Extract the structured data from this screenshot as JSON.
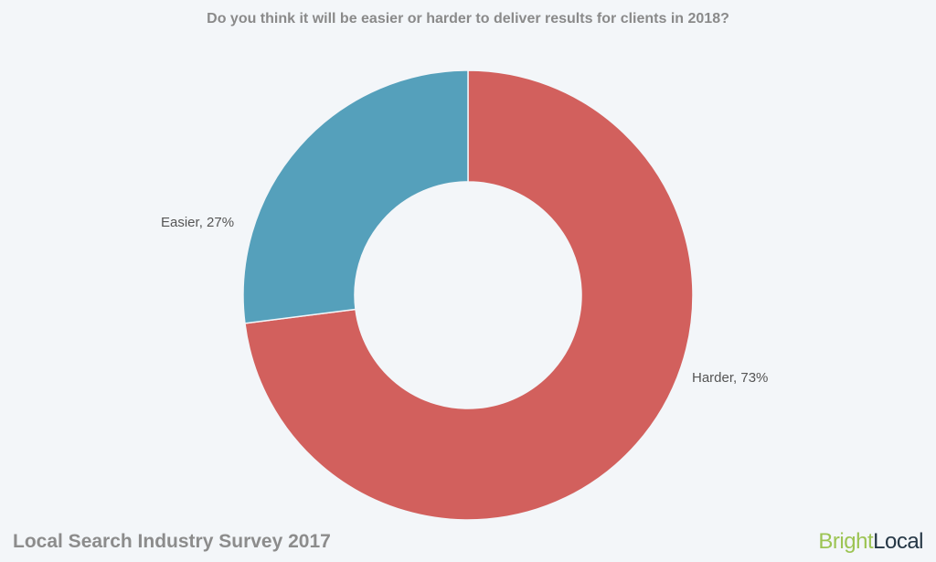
{
  "title": "Do you think it will be easier or harder to deliver results for clients in 2018?",
  "footer": {
    "source": "Local Search Industry Survey 2017",
    "brand_part1": "Bright",
    "brand_part2": "Local"
  },
  "colors": {
    "background": "#f3f6f9",
    "harder": "#d2605d",
    "easier": "#55a0bb",
    "brand_green": "#9cc453",
    "brand_dark": "#253746"
  },
  "chart_data": {
    "type": "pie",
    "subtype": "donut",
    "title": "Do you think it will be easier or harder to deliver results for clients in 2018?",
    "categories": [
      "Harder",
      "Easier"
    ],
    "values": [
      73,
      27
    ],
    "labels": [
      "Harder, 73%",
      "Easier, 27%"
    ],
    "colors": [
      "#d2605d",
      "#55a0bb"
    ],
    "legend": "none",
    "start_angle": "12 o'clock, clockwise"
  }
}
